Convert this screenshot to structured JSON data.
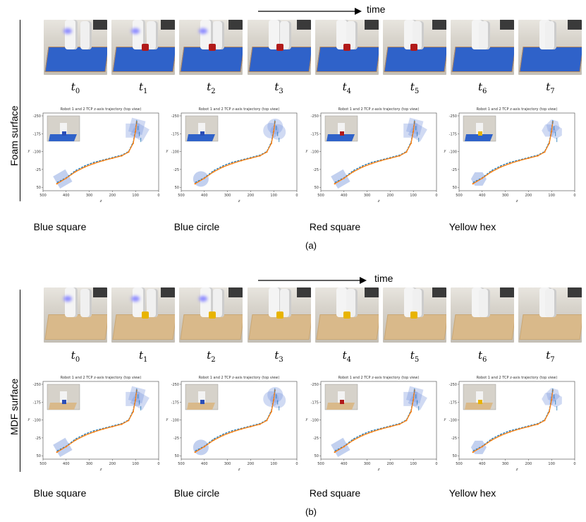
{
  "time_label": "time",
  "panels": [
    {
      "id": "a",
      "label": "(a)",
      "side_label": "Foam surface",
      "surface_color": "#2f62c9",
      "frame_color": "#b98a5a",
      "timesteps": [
        {
          "sym": "t",
          "idx": "0"
        },
        {
          "sym": "t",
          "idx": "1"
        },
        {
          "sym": "t",
          "idx": "2"
        },
        {
          "sym": "t",
          "idx": "3"
        },
        {
          "sym": "t",
          "idx": "4"
        },
        {
          "sym": "t",
          "idx": "5"
        },
        {
          "sym": "t",
          "idx": "6"
        },
        {
          "sym": "t",
          "idx": "7"
        }
      ],
      "plots": [
        {
          "caption": "Blue square",
          "shape": "square"
        },
        {
          "caption": "Blue circle",
          "shape": "circle"
        },
        {
          "caption": "Red square",
          "shape": "square"
        },
        {
          "caption": "Yellow hex",
          "shape": "hex"
        }
      ]
    },
    {
      "id": "b",
      "label": "(b)",
      "side_label": "MDF surface",
      "surface_color": "#d9b98a",
      "frame_color": "#c9a877",
      "timesteps": [
        {
          "sym": "t",
          "idx": "0"
        },
        {
          "sym": "t",
          "idx": "1"
        },
        {
          "sym": "t",
          "idx": "2"
        },
        {
          "sym": "t",
          "idx": "3"
        },
        {
          "sym": "t",
          "idx": "4"
        },
        {
          "sym": "t",
          "idx": "5"
        },
        {
          "sym": "t",
          "idx": "6"
        },
        {
          "sym": "t",
          "idx": "7"
        }
      ],
      "plots": [
        {
          "caption": "Blue square",
          "shape": "square"
        },
        {
          "caption": "Blue circle",
          "shape": "circle"
        },
        {
          "caption": "Red square",
          "shape": "square"
        },
        {
          "caption": "Yellow hex",
          "shape": "hex"
        }
      ]
    }
  ],
  "chart_data": {
    "type": "line",
    "title": "Robot 1 and 2 TCP z-axis trajectory (top view)",
    "xlabel": "z",
    "ylabel": "y",
    "xlim": [
      500,
      0
    ],
    "ylim": [
      50,
      -250
    ],
    "x_ticks": [
      "500",
      "400",
      "300",
      "200",
      "100",
      "0"
    ],
    "y_ticks": [
      "-250",
      "-175",
      "-100",
      "-25",
      "50"
    ],
    "series": [
      {
        "color": "#1f77b4",
        "x": [
          440,
          400,
          360,
          320,
          280,
          240,
          200,
          160,
          130,
          110,
          100,
          95
        ],
        "y": [
          30,
          10,
          -20,
          -40,
          -55,
          -65,
          -75,
          -85,
          -100,
          -140,
          -190,
          -230
        ]
      },
      {
        "color": "#ff7f0e",
        "x": [
          440,
          400,
          360,
          320,
          280,
          240,
          200,
          160,
          130,
          110,
          100,
          95
        ],
        "y": [
          35,
          12,
          -15,
          -35,
          -50,
          -62,
          -72,
          -82,
          -98,
          -135,
          -185,
          -225
        ]
      }
    ]
  }
}
